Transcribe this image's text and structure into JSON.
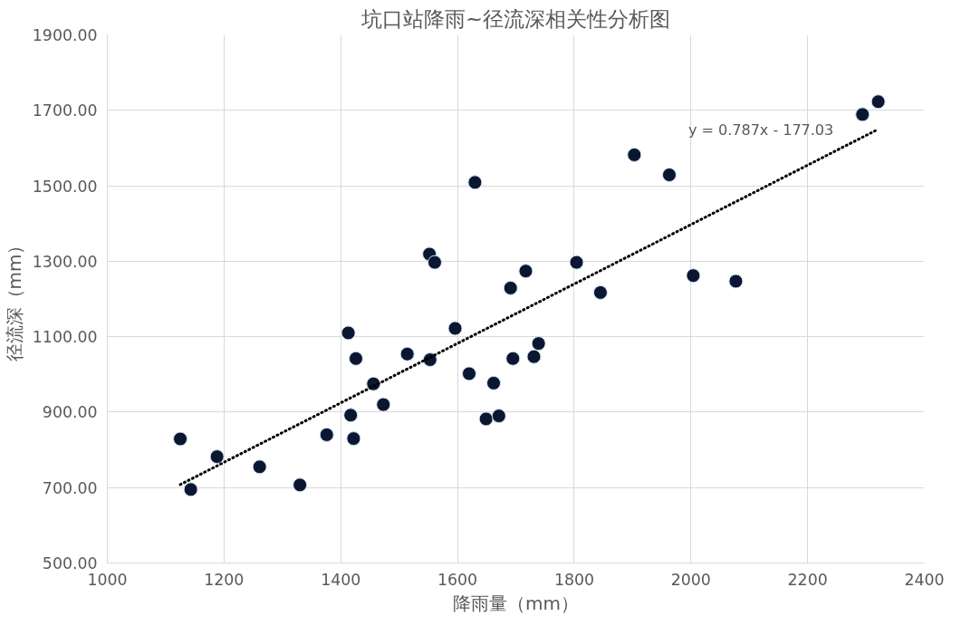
{
  "chart_data": {
    "type": "scatter",
    "title": "坑口站降雨~径流深相关性分析图",
    "xlabel": "降雨量（mm）",
    "ylabel": "径流深（mm）",
    "x": [
      1125,
      1143,
      1188,
      1261,
      1330,
      1376,
      1413,
      1426,
      1417,
      1422,
      1456,
      1473,
      1514,
      1553,
      1552,
      1561,
      1596,
      1630,
      1620,
      1662,
      1649,
      1671,
      1695,
      1691,
      1717,
      1731,
      1739,
      1804,
      1845,
      1903,
      1963,
      2004,
      2077,
      2294,
      2321
    ],
    "series": [
      {
        "color": "#0b1730",
        "values": [
          829,
          695,
          782,
          755,
          707,
          840,
          1110,
          1042,
          892,
          830,
          975,
          920,
          1054,
          1039,
          1319,
          1297,
          1122,
          1509,
          1002,
          977,
          882,
          890,
          1042,
          1229,
          1274,
          1047,
          1082,
          1297,
          1217,
          1582,
          1529,
          1262,
          1247,
          1689,
          1723
        ]
      },
      {
        "type": "line",
        "color": "#000000",
        "line_style": "dotted",
        "marker": "none",
        "x": [
          1125,
          2321
        ],
        "values": [
          708,
          1650
        ]
      }
    ],
    "marker": "circle",
    "xlim": [
      1000,
      2400
    ],
    "xticks": [
      1000,
      1200,
      1400,
      1600,
      1800,
      2000,
      2200,
      2400
    ],
    "ylim": [
      500,
      1900
    ],
    "yticks": [
      {
        "value": 500,
        "label": "500.00"
      },
      {
        "value": 700,
        "label": "700.00"
      },
      {
        "value": 900,
        "label": "900.00"
      },
      {
        "value": 1100,
        "label": "1100.00"
      },
      {
        "value": 1300,
        "label": "1300.00"
      },
      {
        "value": 1500,
        "label": "1500.00"
      },
      {
        "value": 1700,
        "label": "1700.00"
      },
      {
        "value": 1900,
        "label": "1900.00"
      }
    ],
    "grid": true,
    "annotations": [
      "y = 0.787x - 177.03"
    ]
  }
}
